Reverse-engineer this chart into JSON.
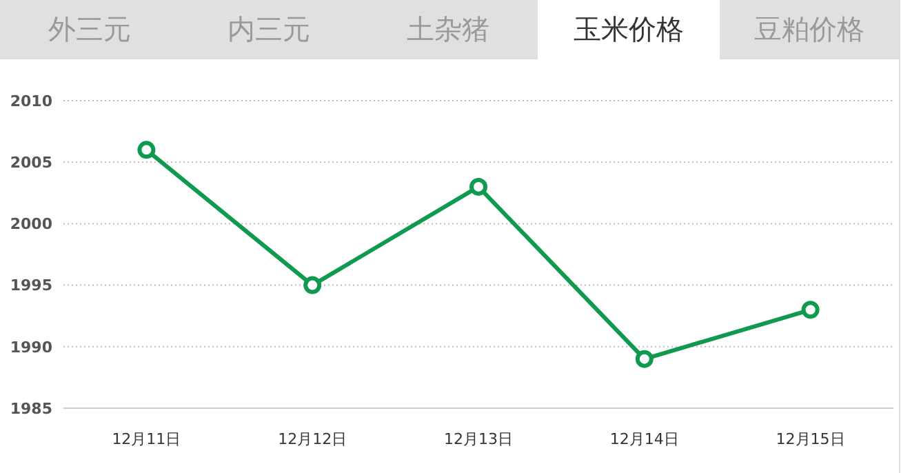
{
  "chart_data": {
    "type": "line",
    "annotations": [
      "外三元",
      "内三元",
      "土杂猪",
      "玉米价格",
      "豆粕价格"
    ],
    "categories": [
      "12月11日",
      "12月12日",
      "12月13日",
      "12月14日",
      "12月15日"
    ],
    "series": [
      {
        "color": "#109a50",
        "values": [
          2006,
          1995,
          2003,
          1989,
          1993
        ]
      }
    ],
    "ylim": [
      1985,
      2010
    ],
    "yticks": [
      1985,
      1990,
      1995,
      2000,
      2005,
      2010
    ],
    "grid": "y",
    "marker": "circle",
    "line_style": "solid"
  }
}
